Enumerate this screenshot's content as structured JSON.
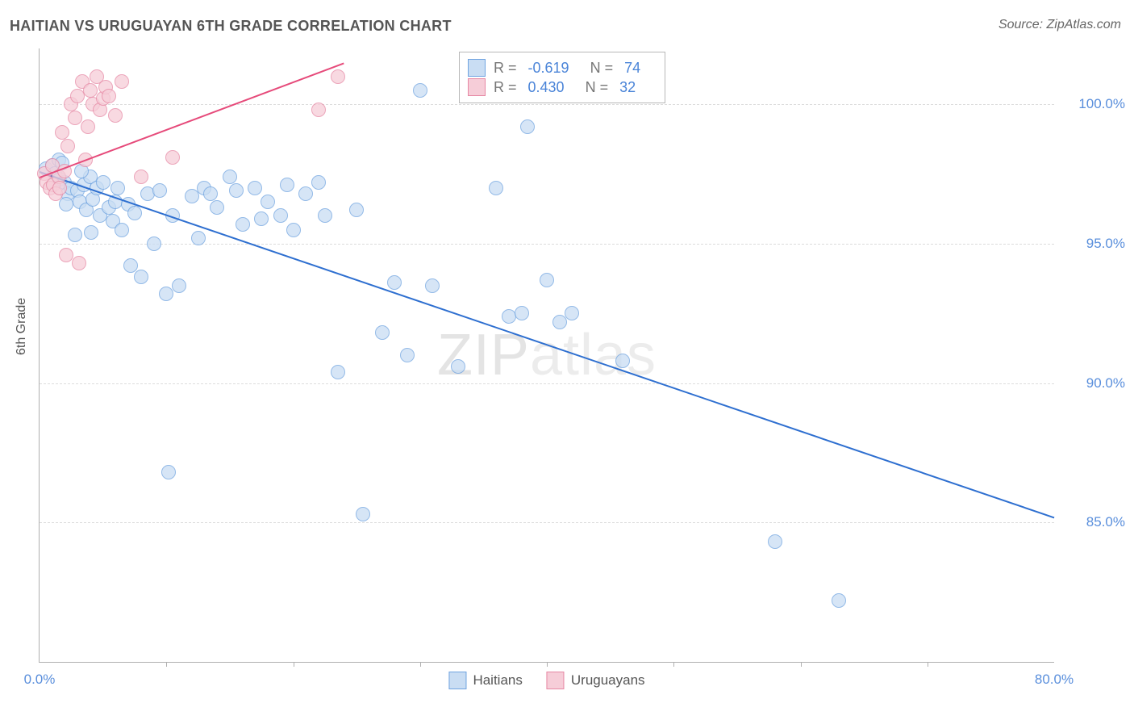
{
  "title": "HAITIAN VS URUGUAYAN 6TH GRADE CORRELATION CHART",
  "source": "Source: ZipAtlas.com",
  "ylabel": "6th Grade",
  "watermark_a": "ZIP",
  "watermark_b": "atlas",
  "chart": {
    "type": "scatter",
    "xlim": [
      0,
      80
    ],
    "ylim": [
      80,
      102
    ],
    "yticks": [
      85.0,
      90.0,
      95.0,
      100.0
    ],
    "ytick_labels": [
      "85.0%",
      "90.0%",
      "95.0%",
      "100.0%"
    ],
    "xtick_marks": [
      10,
      20,
      30,
      40,
      50,
      60,
      70
    ],
    "xtick_labels": [
      {
        "v": 0,
        "t": "0.0%"
      },
      {
        "v": 80,
        "t": "80.0%"
      }
    ],
    "background_color": "#ffffff",
    "grid_color": "#dcdcdc",
    "axis_color": "#b0b0b0",
    "series": [
      {
        "name": "Haitians",
        "color_fill": "#c9ddf3",
        "color_stroke": "#6fa3e0",
        "marker_size": 16,
        "marker_opacity": 0.75,
        "R": -0.619,
        "N": 74,
        "trend_color": "#2e6fd0",
        "trend_width": 2,
        "trend": {
          "x1": 0,
          "y1": 97.6,
          "x2": 80,
          "y2": 85.2
        },
        "points": [
          [
            0.5,
            97.7
          ],
          [
            1.0,
            97.8
          ],
          [
            1.2,
            97.5
          ],
          [
            1.5,
            98.0
          ],
          [
            1.6,
            97.3
          ],
          [
            2.0,
            97.2
          ],
          [
            2.2,
            96.8
          ],
          [
            2.5,
            97.0
          ],
          [
            2.8,
            95.3
          ],
          [
            3.0,
            96.9
          ],
          [
            3.2,
            96.5
          ],
          [
            3.5,
            97.1
          ],
          [
            3.7,
            96.2
          ],
          [
            4.0,
            97.4
          ],
          [
            4.2,
            96.6
          ],
          [
            4.5,
            97.0
          ],
          [
            4.8,
            96.0
          ],
          [
            5.0,
            97.2
          ],
          [
            5.5,
            96.3
          ],
          [
            5.8,
            95.8
          ],
          [
            6.0,
            96.5
          ],
          [
            6.2,
            97.0
          ],
          [
            6.5,
            95.5
          ],
          [
            7.0,
            96.4
          ],
          [
            7.2,
            94.2
          ],
          [
            7.5,
            96.1
          ],
          [
            8.0,
            93.8
          ],
          [
            8.5,
            96.8
          ],
          [
            9.0,
            95.0
          ],
          [
            9.5,
            96.9
          ],
          [
            10.0,
            93.2
          ],
          [
            10.2,
            86.8
          ],
          [
            10.5,
            96.0
          ],
          [
            11.0,
            93.5
          ],
          [
            12.0,
            96.7
          ],
          [
            12.5,
            95.2
          ],
          [
            13.0,
            97.0
          ],
          [
            13.5,
            96.8
          ],
          [
            14.0,
            96.3
          ],
          [
            15.0,
            97.4
          ],
          [
            15.5,
            96.9
          ],
          [
            16.0,
            95.7
          ],
          [
            17.0,
            97.0
          ],
          [
            17.5,
            95.9
          ],
          [
            18.0,
            96.5
          ],
          [
            19.0,
            96.0
          ],
          [
            19.5,
            97.1
          ],
          [
            20.0,
            95.5
          ],
          [
            21.0,
            96.8
          ],
          [
            22.0,
            97.2
          ],
          [
            22.5,
            96.0
          ],
          [
            23.5,
            90.4
          ],
          [
            25.0,
            96.2
          ],
          [
            25.5,
            85.3
          ],
          [
            27.0,
            91.8
          ],
          [
            28.0,
            93.6
          ],
          [
            29.0,
            91.0
          ],
          [
            30.0,
            100.5
          ],
          [
            31.0,
            93.5
          ],
          [
            33.0,
            90.6
          ],
          [
            36.0,
            97.0
          ],
          [
            37.0,
            92.4
          ],
          [
            38.0,
            92.5
          ],
          [
            38.5,
            99.2
          ],
          [
            40.0,
            93.7
          ],
          [
            41.0,
            92.2
          ],
          [
            42.0,
            92.5
          ],
          [
            46.0,
            90.8
          ],
          [
            58.0,
            84.3
          ],
          [
            63.0,
            82.2
          ],
          [
            1.8,
            97.9
          ],
          [
            2.1,
            96.4
          ],
          [
            3.3,
            97.6
          ],
          [
            4.1,
            95.4
          ]
        ]
      },
      {
        "name": "Uruguayans",
        "color_fill": "#f6cdd8",
        "color_stroke": "#e687a3",
        "marker_size": 16,
        "marker_opacity": 0.75,
        "R": 0.43,
        "N": 32,
        "trend_color": "#e64a7a",
        "trend_width": 2,
        "trend": {
          "x1": 0,
          "y1": 97.4,
          "x2": 24,
          "y2": 101.5
        },
        "points": [
          [
            0.4,
            97.5
          ],
          [
            0.6,
            97.2
          ],
          [
            0.8,
            97.0
          ],
          [
            1.0,
            97.8
          ],
          [
            1.1,
            97.1
          ],
          [
            1.3,
            96.8
          ],
          [
            1.5,
            97.4
          ],
          [
            1.6,
            97.0
          ],
          [
            1.8,
            99.0
          ],
          [
            2.0,
            97.6
          ],
          [
            2.1,
            94.6
          ],
          [
            2.2,
            98.5
          ],
          [
            2.5,
            100.0
          ],
          [
            2.8,
            99.5
          ],
          [
            3.0,
            100.3
          ],
          [
            3.1,
            94.3
          ],
          [
            3.4,
            100.8
          ],
          [
            3.6,
            98.0
          ],
          [
            3.8,
            99.2
          ],
          [
            4.0,
            100.5
          ],
          [
            4.2,
            100.0
          ],
          [
            4.5,
            101.0
          ],
          [
            4.8,
            99.8
          ],
          [
            5.0,
            100.2
          ],
          [
            5.2,
            100.6
          ],
          [
            5.5,
            100.3
          ],
          [
            6.0,
            99.6
          ],
          [
            6.5,
            100.8
          ],
          [
            8.0,
            97.4
          ],
          [
            10.5,
            98.1
          ],
          [
            22.0,
            99.8
          ],
          [
            23.5,
            101.0
          ]
        ]
      }
    ],
    "legend_bottom": [
      {
        "label": "Haitians",
        "fill": "#c9ddf3",
        "stroke": "#6fa3e0"
      },
      {
        "label": "Uruguayans",
        "fill": "#f6cdd8",
        "stroke": "#e687a3"
      }
    ],
    "stat_label_R": "R =",
    "stat_label_N": "N =",
    "stat_value_color": "#4a84d8",
    "tick_label_color": "#5a8fdc",
    "title_color": "#555555",
    "title_fontsize": 18,
    "label_fontsize": 16
  }
}
